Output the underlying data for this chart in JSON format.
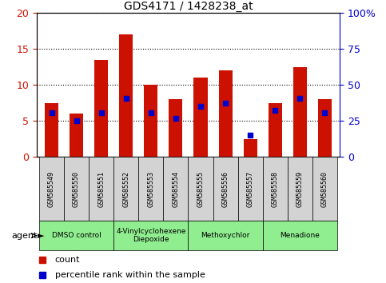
{
  "title": "GDS4171 / 1428238_at",
  "samples": [
    "GSM585549",
    "GSM585550",
    "GSM585551",
    "GSM585552",
    "GSM585553",
    "GSM585554",
    "GSM585555",
    "GSM585556",
    "GSM585557",
    "GSM585558",
    "GSM585559",
    "GSM585560"
  ],
  "count_values": [
    7.5,
    6.0,
    13.5,
    17.0,
    10.0,
    8.0,
    11.0,
    12.0,
    2.5,
    7.5,
    12.5,
    8.0
  ],
  "percentile_left_axis": [
    6.1,
    5.0,
    6.1,
    8.1,
    6.1,
    5.4,
    7.0,
    7.5,
    3.0,
    6.5,
    8.1,
    6.1
  ],
  "bar_color": "#cc1100",
  "square_color": "#0000cc",
  "ylim_left": [
    0,
    20
  ],
  "ylim_right": [
    0,
    100
  ],
  "yticks_left": [
    0,
    5,
    10,
    15,
    20
  ],
  "yticks_right": [
    0,
    25,
    50,
    75,
    100
  ],
  "ytick_labels_right": [
    "0",
    "25",
    "50",
    "75",
    "100%"
  ],
  "agent_ranges": [
    [
      0,
      3,
      "DMSO control"
    ],
    [
      3,
      6,
      "4-Vinylcyclohexene\nDiepoxide"
    ],
    [
      6,
      9,
      "Methoxychlor"
    ],
    [
      9,
      12,
      "Menadione"
    ]
  ],
  "agent_label": "agent",
  "legend_count_label": "count",
  "legend_percentile_label": "percentile rank within the sample",
  "bar_width": 0.55,
  "left_tick_color": "#cc1100",
  "right_tick_color": "#0000cc",
  "agent_area_color": "#90ee90",
  "label_area_color": "#d3d3d3"
}
